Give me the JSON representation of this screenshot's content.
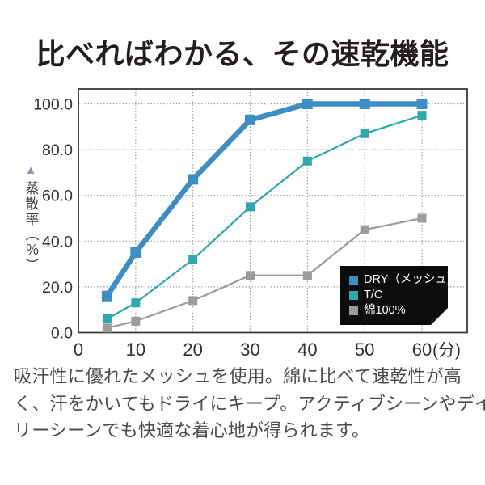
{
  "title": "比べればわかる、その速乾機能",
  "description": {
    "line1": "吸汗性に優れたメッシュを使用。綿に比べて速乾性が高",
    "line2": "く、汗をかいてもドライにキープ。アクティブシーンやデイ",
    "line3": "リーシーンでも快適な着心地が得られます。"
  },
  "chart_data": {
    "type": "line",
    "title": "",
    "xlabel_unit": "(分)",
    "ylabel": "蒸散率（％）",
    "ylabel_marker": "▲",
    "x": [
      5,
      10,
      20,
      30,
      40,
      50,
      60
    ],
    "x_ticks": [
      0,
      10,
      20,
      30,
      40,
      50,
      60
    ],
    "y_ticks": [
      {
        "label": "100.0",
        "value": 100
      },
      {
        "label": "80.0",
        "value": 80
      },
      {
        "label": "60.0",
        "value": 60
      },
      {
        "label": "40.0",
        "value": 40
      },
      {
        "label": "20.0",
        "value": 20
      },
      {
        "label": "0.0",
        "value": 0
      }
    ],
    "xlim": [
      0,
      68
    ],
    "ylim": [
      0,
      106
    ],
    "grid": "dotted",
    "legend_position": "inside-bottom-right",
    "series": [
      {
        "name": "DRY（メッシュ）",
        "color": "#3d8ec5",
        "line_width": 6.5,
        "marker": "square",
        "marker_size": 13,
        "values": [
          16,
          35,
          67,
          93,
          100,
          100,
          100
        ]
      },
      {
        "name": "T/C",
        "color": "#2ba9ad",
        "line_width": 2.2,
        "marker": "square",
        "marker_size": 11,
        "values": [
          6,
          13,
          32,
          55,
          75,
          87,
          95
        ]
      },
      {
        "name": "綿100%",
        "color": "#9c9c9c",
        "line_width": 2.2,
        "marker": "square",
        "marker_size": 11,
        "values": [
          2,
          5,
          14,
          25,
          25,
          45,
          50
        ]
      }
    ]
  },
  "colors": {
    "frame": "#3a3a3a",
    "grid": "#909090",
    "tick_label": "#323232",
    "title_text": "#241e1f",
    "body_text": "#4c4c4c",
    "legend_bg": "#0c0c0c",
    "legend_text": "#ffffff",
    "axis_marker": "#8d98a4"
  }
}
